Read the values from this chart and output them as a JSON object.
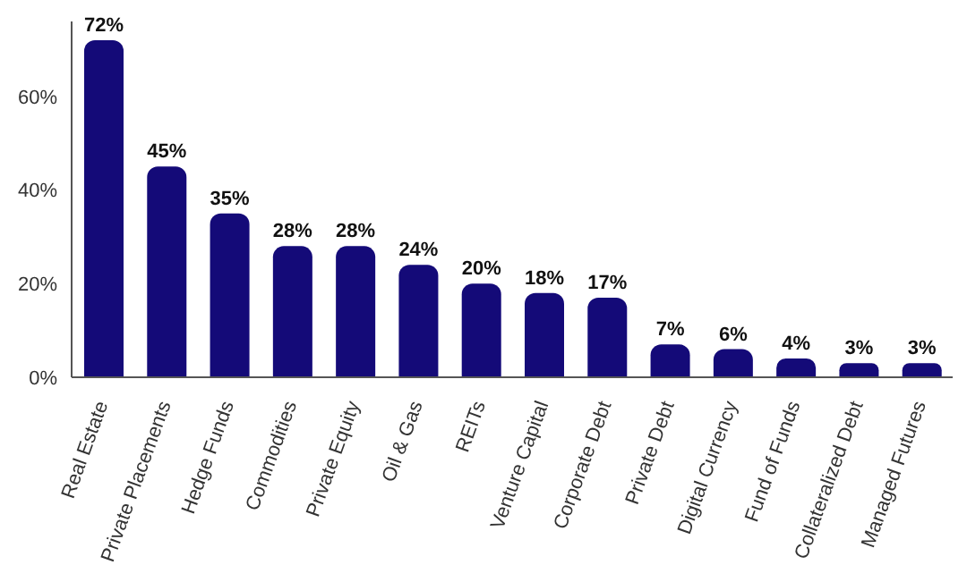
{
  "chart_data": {
    "type": "bar",
    "categories": [
      "Real Estate",
      "Private Placements",
      "Hedge Funds",
      "Commodities",
      "Private Equity",
      "Oil & Gas",
      "REITs",
      "Venture Capital",
      "Corporate Debt",
      "Private Debt",
      "Digital Currency",
      "Fund of Funds",
      "Collateralized Debt",
      "Managed Futures"
    ],
    "values": [
      72,
      45,
      35,
      28,
      28,
      24,
      20,
      18,
      17,
      7,
      6,
      4,
      3,
      3
    ],
    "value_labels": [
      "72%",
      "45%",
      "35%",
      "28%",
      "28%",
      "24%",
      "20%",
      "18%",
      "17%",
      "7%",
      "6%",
      "4%",
      "3%",
      "3%"
    ],
    "color": "#140a78",
    "ylim": [
      0,
      76
    ],
    "yticks": [
      {
        "value": 0,
        "label": "0%"
      },
      {
        "value": 20,
        "label": "20%"
      },
      {
        "value": 40,
        "label": "40%"
      },
      {
        "value": 60,
        "label": "60%"
      }
    ],
    "grid": false
  }
}
